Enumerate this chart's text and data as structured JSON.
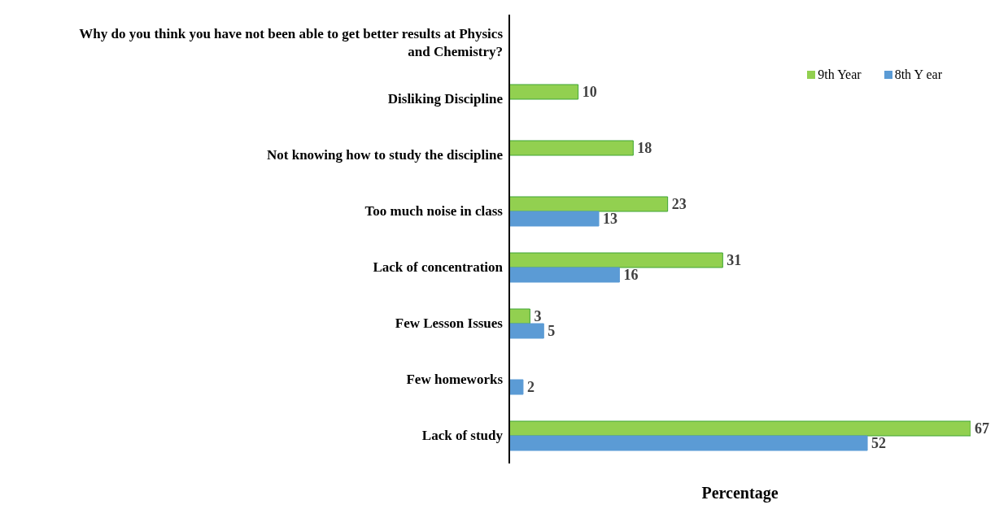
{
  "chart_data": {
    "type": "bar",
    "orientation": "horizontal",
    "xlabel": "Percentage",
    "categories": [
      "Why do you think you have not been able to get better results at Physics and Chemistry?",
      "Disliking Discipline",
      "Not knowing how to study the discipline",
      "Too much noise in class",
      "Lack of concentration",
      "Few Lesson Issues",
      "Few homeworks",
      "Lack of study"
    ],
    "series": [
      {
        "name": "9th Year",
        "color": "#92d050",
        "values": [
          null,
          10,
          18,
          23,
          31,
          3,
          null,
          67
        ]
      },
      {
        "name": "8th Y ear",
        "color": "#5b9bd5",
        "values": [
          null,
          null,
          null,
          13,
          16,
          5,
          2,
          52
        ]
      }
    ],
    "data_labels": true,
    "legend": "top right",
    "tick_labels": "y"
  }
}
